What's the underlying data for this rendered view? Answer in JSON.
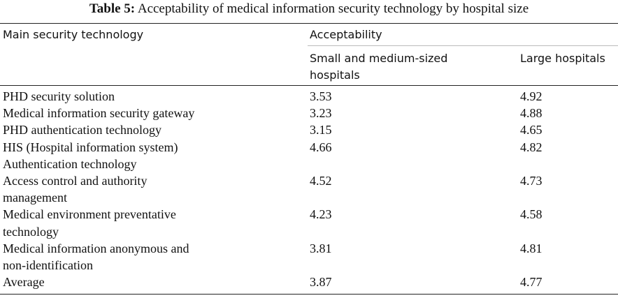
{
  "caption": {
    "label": "Table 5:",
    "text": "Acceptability of medical information security technology by hospital size"
  },
  "header": {
    "col0": "Main security technology",
    "group": "Acceptability",
    "col1_line1": "Small and medium-sized",
    "col1_line2": "hospitals",
    "col2": "Large hospitals"
  },
  "rows": [
    {
      "name": [
        "PHD security solution"
      ],
      "small": "3.53",
      "large": "4.92"
    },
    {
      "name": [
        "Medical information security gateway"
      ],
      "small": "3.23",
      "large": "4.88"
    },
    {
      "name": [
        "PHD authentication technology"
      ],
      "small": "3.15",
      "large": "4.65"
    },
    {
      "name": [
        "HIS (Hospital information system)",
        "Authentication technology"
      ],
      "small": "4.66",
      "large": "4.82"
    },
    {
      "name": [
        "Access control and authority",
        "management"
      ],
      "small": "4.52",
      "large": "4.73"
    },
    {
      "name": [
        "Medical environment preventative",
        "technology"
      ],
      "small": "4.23",
      "large": "4.58"
    },
    {
      "name": [
        "Medical information anonymous and",
        "non-identification"
      ],
      "small": "3.81",
      "large": "4.81"
    },
    {
      "name": [
        "Average"
      ],
      "small": "3.87",
      "large": "4.77"
    }
  ]
}
